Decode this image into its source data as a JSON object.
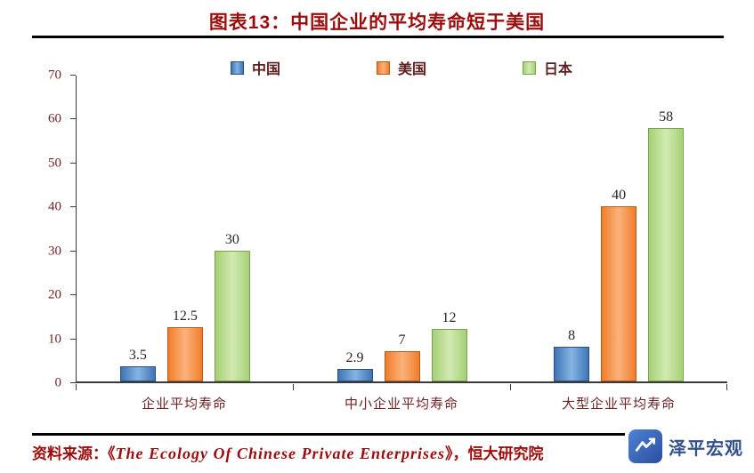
{
  "title": "图表13：中国企业的平均寿命短于美国",
  "source": {
    "prefix": "资料来源：《",
    "english": "The Ecology Of Chinese Private Enterprises",
    "suffix": "》，恒大研究院"
  },
  "brand": {
    "name": "泽平宏观",
    "logo_icon": "trend-mark-icon",
    "logo_color": "#2b4f9e"
  },
  "colors": {
    "title_red": "#9b0d0d",
    "axis_label": "#6e2424",
    "value_label": "#262626"
  },
  "chart_data": {
    "type": "bar",
    "title": "图表13：中国企业的平均寿命短于美国",
    "categories": [
      "企业平均寿命",
      "中小企业平均寿命",
      "大型企业平均寿命"
    ],
    "series": [
      {
        "name": "中国",
        "values": [
          3.5,
          2.9,
          8
        ],
        "fill": "#3f74b5",
        "highlight": "#85b4e3",
        "border": "#2a5183"
      },
      {
        "name": "美国",
        "values": [
          12.5,
          7,
          40
        ],
        "fill": "#ef7d2a",
        "highlight": "#fbb27c",
        "border": "#b65a14"
      },
      {
        "name": "日本",
        "values": [
          30,
          12,
          58
        ],
        "fill": "#a5d075",
        "highlight": "#d2eab2",
        "border": "#7ba24c"
      }
    ],
    "ylim": [
      0,
      70
    ],
    "ytick_step": 10,
    "yticks": [
      0,
      10,
      20,
      30,
      40,
      50,
      60,
      70
    ],
    "grid": false,
    "legend_position": "top",
    "xlabel": "",
    "ylabel": ""
  }
}
